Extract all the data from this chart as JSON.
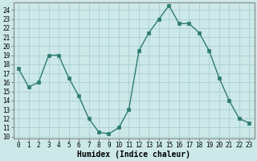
{
  "x": [
    0,
    1,
    2,
    3,
    4,
    5,
    6,
    7,
    8,
    9,
    10,
    11,
    12,
    13,
    14,
    15,
    16,
    17,
    18,
    19,
    20,
    21,
    22,
    23
  ],
  "y": [
    17.5,
    15.5,
    16.0,
    19.0,
    19.0,
    16.5,
    14.5,
    12.0,
    10.5,
    10.3,
    11.0,
    13.0,
    19.5,
    21.5,
    23.0,
    24.5,
    22.5,
    22.5,
    21.5,
    19.5,
    16.5,
    14.0,
    12.0,
    11.5
  ],
  "line_color": "#2e7d6e",
  "marker_color": "#2e7d6e",
  "bg_color": "#cce8e8",
  "grid_color": "#aad0d0",
  "xlabel": "Humidex (Indice chaleur)",
  "xlim": [
    -0.5,
    23.5
  ],
  "ylim": [
    9.8,
    24.8
  ],
  "yticks": [
    10,
    11,
    12,
    13,
    14,
    15,
    16,
    17,
    18,
    19,
    20,
    21,
    22,
    23,
    24
  ],
  "xticks": [
    0,
    1,
    2,
    3,
    4,
    5,
    6,
    7,
    8,
    9,
    10,
    11,
    12,
    13,
    14,
    15,
    16,
    17,
    18,
    19,
    20,
    21,
    22,
    23
  ],
  "font_size": 5.5,
  "xlabel_fontsize": 7,
  "marker_size": 2.5,
  "line_width": 1.0
}
